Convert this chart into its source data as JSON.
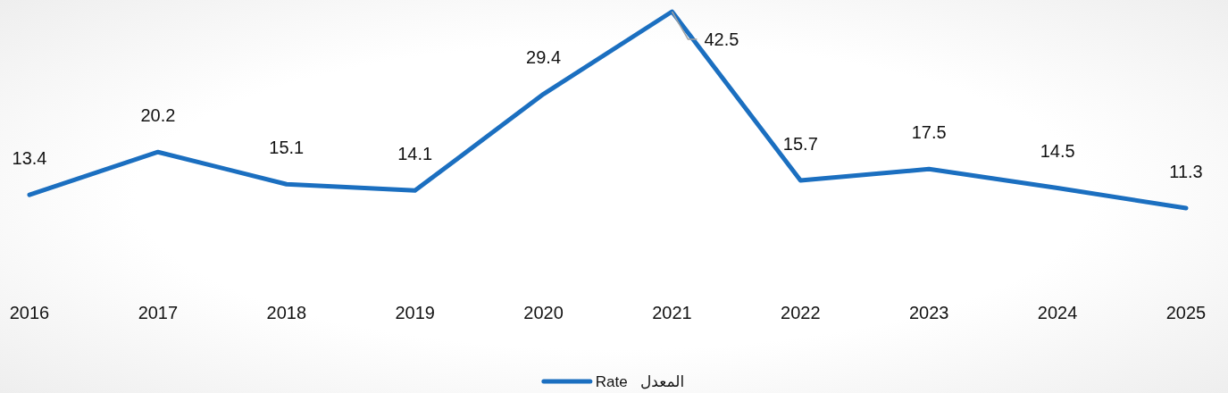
{
  "chart_data": {
    "type": "line",
    "categories": [
      "2016",
      "2017",
      "2018",
      "2019",
      "2020",
      "2021",
      "2022",
      "2023",
      "2024",
      "2025"
    ],
    "series": [
      {
        "name": "Rate   المعدل",
        "color": "#1b6fc0",
        "values": [
          13.4,
          20.2,
          15.1,
          14.1,
          29.4,
          42.5,
          15.7,
          17.5,
          14.5,
          11.3
        ]
      }
    ],
    "data_labels": true,
    "legend": "bottom",
    "line_style": "solid"
  }
}
